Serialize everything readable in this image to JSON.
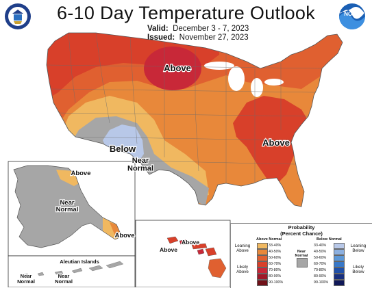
{
  "header": {
    "title": "6-10 Day Temperature Outlook",
    "valid_label": "Valid:",
    "valid_value": "December 3 - 7, 2023",
    "issued_label": "Issued:",
    "issued_value": "November 27, 2023",
    "left_logo_icon": "commerce-seal-icon",
    "right_logo_icon": "noaa-logo-icon"
  },
  "map_labels": {
    "north_central": "Above",
    "southeast": "Above",
    "southwest_below": "Below",
    "southwest_near": "Near\nNormal",
    "alaska_above": "Above",
    "alaska_near": "Near\nNormal",
    "alaska_southeast": "Above",
    "hawaii_left": "Above",
    "hawaii_right": "Above",
    "aleutian_title": "Aleutian Islands",
    "aleutian_near_left": "Near\nNormal",
    "aleutian_near_mid": "Near\nNormal"
  },
  "legend": {
    "title_line1": "Probability",
    "title_line2": "(Percent Chance)",
    "above_header": "Above Normal",
    "below_header": "Below Normal",
    "near_normal_label": "Near\nNormal",
    "leaning_above": "Leaning\nAbove",
    "likely_above": "Likely\nAbove",
    "leaning_below": "Leaning\nBelow",
    "likely_below": "Likely\nBelow",
    "above_bins": [
      {
        "range": "33-40%",
        "color": "#f0b860"
      },
      {
        "range": "40-50%",
        "color": "#e8883a"
      },
      {
        "range": "50-60%",
        "color": "#e06030"
      },
      {
        "range": "60-70%",
        "color": "#d8402a"
      },
      {
        "range": "70-80%",
        "color": "#c82838"
      },
      {
        "range": "80-90%",
        "color": "#a01828"
      },
      {
        "range": "90-100%",
        "color": "#701018"
      }
    ],
    "below_bins": [
      {
        "range": "33-40%",
        "color": "#b8c8e8"
      },
      {
        "range": "40-50%",
        "color": "#8cb0e0"
      },
      {
        "range": "50-60%",
        "color": "#5c98d8"
      },
      {
        "range": "60-70%",
        "color": "#3878c8"
      },
      {
        "range": "70-80%",
        "color": "#2050a8"
      },
      {
        "range": "80-90%",
        "color": "#183080"
      },
      {
        "range": "90-100%",
        "color": "#101858"
      }
    ],
    "near_color": "#a6a6a6"
  }
}
